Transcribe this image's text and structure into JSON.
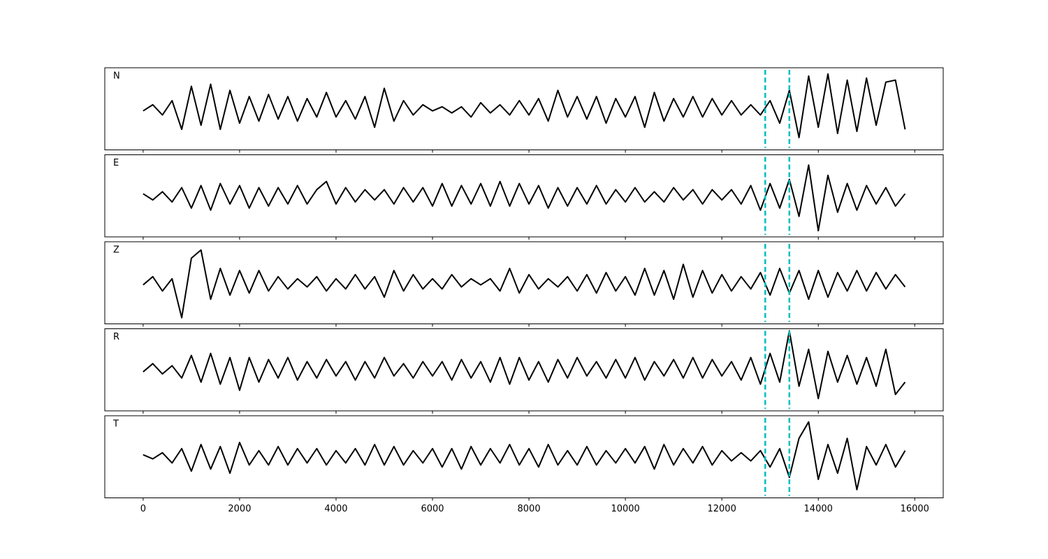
{
  "chart_data": {
    "type": "line",
    "x": [
      0,
      200,
      400,
      600,
      800,
      1000,
      1200,
      1400,
      1600,
      1800,
      2000,
      2200,
      2400,
      2600,
      2800,
      3000,
      3200,
      3400,
      3600,
      3800,
      4000,
      4200,
      4400,
      4600,
      4800,
      5000,
      5200,
      5400,
      5600,
      5800,
      6000,
      6200,
      6400,
      6600,
      6800,
      7000,
      7200,
      7400,
      7600,
      7800,
      8000,
      8200,
      8400,
      8600,
      8800,
      9000,
      9200,
      9400,
      9600,
      9800,
      10000,
      10200,
      10400,
      10600,
      10800,
      11000,
      11200,
      11400,
      11600,
      11800,
      12000,
      12200,
      12400,
      12600,
      12800,
      13000,
      13200,
      13400,
      13600,
      13800,
      14000,
      14200,
      14400,
      14600,
      14800,
      15000,
      15200,
      15400,
      15600,
      15800
    ],
    "xlim": [
      -795,
      16590
    ],
    "xticks": [
      0,
      2000,
      4000,
      6000,
      8000,
      10000,
      12000,
      14000,
      16000
    ],
    "ylim": [
      -1,
      1
    ],
    "series": [
      {
        "name": "N",
        "color": "#000000",
        "values": [
          -0.05,
          0.1,
          -0.15,
          0.2,
          -0.5,
          0.55,
          -0.4,
          0.6,
          -0.5,
          0.45,
          -0.35,
          0.3,
          -0.3,
          0.35,
          -0.25,
          0.3,
          -0.3,
          0.25,
          -0.2,
          0.4,
          -0.2,
          0.2,
          -0.25,
          0.3,
          -0.45,
          0.5,
          -0.3,
          0.2,
          -0.15,
          0.1,
          -0.05,
          0.05,
          -0.1,
          0.05,
          -0.2,
          0.15,
          -0.1,
          0.1,
          -0.15,
          0.2,
          -0.15,
          0.25,
          -0.3,
          0.45,
          -0.2,
          0.3,
          -0.25,
          0.3,
          -0.35,
          0.25,
          -0.2,
          0.3,
          -0.45,
          0.4,
          -0.3,
          0.25,
          -0.2,
          0.3,
          -0.2,
          0.25,
          -0.15,
          0.2,
          -0.15,
          0.1,
          -0.15,
          0.2,
          -0.35,
          0.45,
          -0.7,
          0.8,
          -0.45,
          0.85,
          -0.6,
          0.7,
          -0.55,
          0.75,
          -0.4,
          0.65,
          0.7,
          -0.5
        ]
      },
      {
        "name": "E",
        "color": "#000000",
        "values": [
          0.05,
          -0.1,
          0.1,
          -0.15,
          0.2,
          -0.3,
          0.25,
          -0.35,
          0.3,
          -0.2,
          0.25,
          -0.3,
          0.2,
          -0.25,
          0.2,
          -0.2,
          0.25,
          -0.2,
          0.15,
          0.35,
          -0.2,
          0.2,
          -0.15,
          0.15,
          -0.1,
          0.15,
          -0.2,
          0.2,
          -0.15,
          0.2,
          -0.25,
          0.3,
          -0.25,
          0.25,
          -0.2,
          0.3,
          -0.25,
          0.35,
          -0.25,
          0.3,
          -0.2,
          0.25,
          -0.3,
          0.2,
          -0.25,
          0.2,
          -0.2,
          0.25,
          -0.2,
          0.15,
          -0.15,
          0.2,
          -0.15,
          0.1,
          -0.15,
          0.2,
          -0.1,
          0.15,
          -0.2,
          0.15,
          -0.1,
          0.15,
          -0.2,
          0.25,
          -0.35,
          0.3,
          -0.3,
          0.4,
          -0.5,
          0.75,
          -0.85,
          0.5,
          -0.4,
          0.3,
          -0.35,
          0.25,
          -0.2,
          0.2,
          -0.25,
          0.05
        ]
      },
      {
        "name": "Z",
        "color": "#000000",
        "values": [
          -0.05,
          0.15,
          -0.2,
          0.1,
          -0.85,
          0.6,
          0.8,
          -0.4,
          0.35,
          -0.3,
          0.3,
          -0.25,
          0.3,
          -0.2,
          0.15,
          -0.15,
          0.1,
          -0.1,
          0.15,
          -0.2,
          0.1,
          -0.15,
          0.2,
          -0.15,
          0.15,
          -0.35,
          0.3,
          -0.2,
          0.2,
          -0.15,
          0.1,
          -0.15,
          0.2,
          -0.1,
          0.1,
          -0.05,
          0.1,
          -0.2,
          0.35,
          -0.25,
          0.2,
          -0.15,
          0.1,
          -0.1,
          0.15,
          -0.2,
          0.2,
          -0.25,
          0.25,
          -0.2,
          0.15,
          -0.3,
          0.35,
          -0.3,
          0.3,
          -0.4,
          0.45,
          -0.35,
          0.3,
          -0.25,
          0.2,
          -0.2,
          0.15,
          -0.15,
          0.25,
          -0.3,
          0.35,
          -0.25,
          0.3,
          -0.4,
          0.3,
          -0.35,
          0.25,
          -0.2,
          0.3,
          -0.2,
          0.25,
          -0.15,
          0.2,
          -0.1
        ]
      },
      {
        "name": "R",
        "color": "#000000",
        "values": [
          -0.05,
          0.15,
          -0.1,
          0.1,
          -0.2,
          0.35,
          -0.3,
          0.4,
          -0.35,
          0.3,
          -0.5,
          0.3,
          -0.3,
          0.25,
          -0.2,
          0.3,
          -0.25,
          0.2,
          -0.2,
          0.25,
          -0.15,
          0.2,
          -0.25,
          0.2,
          -0.2,
          0.3,
          -0.15,
          0.15,
          -0.2,
          0.2,
          -0.15,
          0.2,
          -0.25,
          0.25,
          -0.2,
          0.2,
          -0.3,
          0.3,
          -0.35,
          0.3,
          -0.25,
          0.2,
          -0.3,
          0.25,
          -0.2,
          0.3,
          -0.15,
          0.2,
          -0.2,
          0.25,
          -0.2,
          0.3,
          -0.25,
          0.2,
          -0.15,
          0.25,
          -0.2,
          0.3,
          -0.2,
          0.25,
          -0.15,
          0.2,
          -0.25,
          0.3,
          -0.35,
          0.4,
          -0.3,
          0.95,
          -0.4,
          0.5,
          -0.7,
          0.45,
          -0.3,
          0.35,
          -0.35,
          0.3,
          -0.4,
          0.5,
          -0.6,
          -0.3
        ]
      },
      {
        "name": "T",
        "color": "#000000",
        "values": [
          0.05,
          -0.05,
          0.1,
          -0.15,
          0.2,
          -0.35,
          0.3,
          -0.3,
          0.25,
          -0.4,
          0.35,
          -0.2,
          0.15,
          -0.2,
          0.25,
          -0.2,
          0.2,
          -0.15,
          0.2,
          -0.2,
          0.15,
          -0.15,
          0.2,
          -0.2,
          0.3,
          -0.2,
          0.25,
          -0.2,
          0.15,
          -0.15,
          0.2,
          -0.25,
          0.2,
          -0.3,
          0.25,
          -0.2,
          0.2,
          -0.15,
          0.3,
          -0.2,
          0.2,
          -0.25,
          0.3,
          -0.2,
          0.15,
          -0.2,
          0.25,
          -0.2,
          0.15,
          -0.15,
          0.2,
          -0.15,
          0.25,
          -0.3,
          0.3,
          -0.2,
          0.2,
          -0.15,
          0.25,
          -0.2,
          0.15,
          -0.1,
          0.1,
          -0.1,
          0.15,
          -0.25,
          0.2,
          -0.5,
          0.45,
          0.85,
          -0.55,
          0.3,
          -0.4,
          0.45,
          -0.8,
          0.25,
          -0.2,
          0.3,
          -0.25,
          0.15
        ]
      }
    ],
    "vlines": {
      "x": [
        12900,
        13400
      ],
      "color": "#00bfbf",
      "style": "dashed"
    }
  }
}
